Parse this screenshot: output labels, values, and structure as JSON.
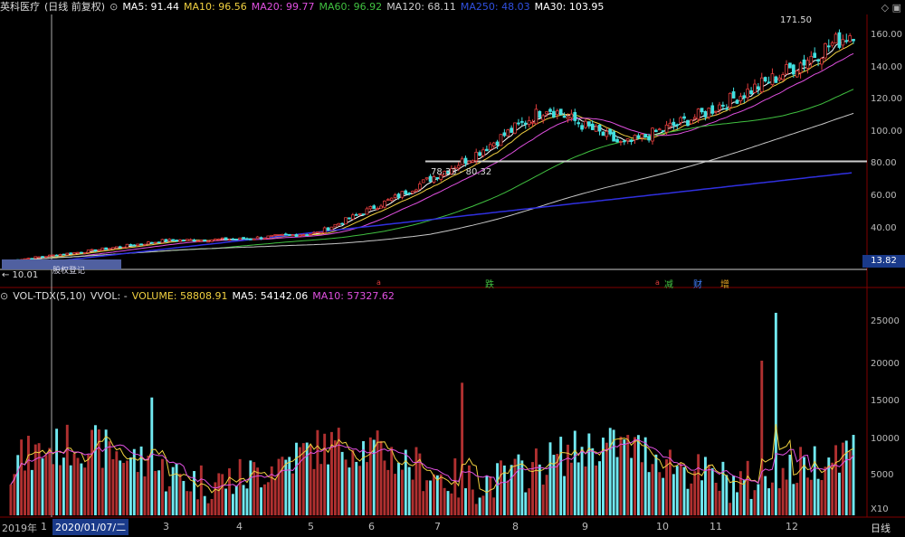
{
  "header": {
    "stock": "英科医疗",
    "mode": "(日线 前复权)",
    "ma5": "MA5: 91.44",
    "ma10": "MA10: 96.56",
    "ma20": "MA20: 99.77",
    "ma60": "MA60: 96.92",
    "ma120": "MA120: 68.11",
    "ma250": "MA250: 48.03",
    "ma30": "MA30: 103.95"
  },
  "colors": {
    "up": "#e03c3c",
    "down": "#40e0e0",
    "ma5": "#ffffff",
    "ma10": "#f0d040",
    "ma20": "#e050e0",
    "ma60": "#40c040",
    "ma120": "#c8c8c8",
    "ma250": "#3030e0",
    "ma30": "#cccccc"
  },
  "price_panel": {
    "y_ticks": [
      "160.00",
      "140.00",
      "120.00",
      "100.00",
      "80.00",
      "60.00",
      "40.00"
    ],
    "high_label": "171.50",
    "low_label": "← 10.01",
    "current_price_tag": "13.82",
    "horizontal_line_label": "78.33 - 80.32",
    "left_box_label": "股权登记",
    "markers": [
      {
        "text": "跌",
        "color": "#40c040"
      },
      {
        "text": "减",
        "color": "#40c040"
      },
      {
        "text": "财",
        "color": "#4080ff"
      },
      {
        "text": "增",
        "color": "#e0a020"
      }
    ],
    "diamond": "◇"
  },
  "volume_panel": {
    "title": "VOL-TDX(5,10)",
    "vol_label": "VVOL: -",
    "volume": "VOLUME: 58808.91",
    "ma5": "MA5: 54142.06",
    "ma10": "MA10: 57327.62",
    "y_ticks": [
      "25000",
      "20000",
      "15000",
      "10000",
      "5000"
    ],
    "unit": "X10"
  },
  "x_axis": {
    "year_label": "2019年",
    "months": [
      "1",
      "3",
      "4",
      "5",
      "6",
      "7",
      "8",
      "9",
      "10",
      "11",
      "12"
    ],
    "cursor_date": "2020/01/07/二",
    "right_label": "日线"
  },
  "chart_data": {
    "type": "candlestick",
    "x_range": [
      "2019-12",
      "2020-12"
    ],
    "ylim_price": [
      10.01,
      171.5
    ],
    "ylim_volume": [
      0,
      27500
    ],
    "price_path": [
      {
        "month": "2020-01",
        "close": 14
      },
      {
        "month": "2020-02",
        "close": 20
      },
      {
        "month": "2020-03",
        "close": 27
      },
      {
        "month": "2020-04",
        "close": 28
      },
      {
        "month": "2020-05",
        "close": 32
      },
      {
        "month": "2020-06",
        "close": 55
      },
      {
        "month": "2020-07",
        "close": 82
      },
      {
        "month": "2020-08",
        "close": 115
      },
      {
        "month": "2020-09",
        "close": 90
      },
      {
        "month": "2020-10",
        "close": 110
      },
      {
        "month": "2020-11",
        "close": 135
      },
      {
        "month": "2020-12",
        "close": 165
      }
    ],
    "volume_peak": 27500
  }
}
